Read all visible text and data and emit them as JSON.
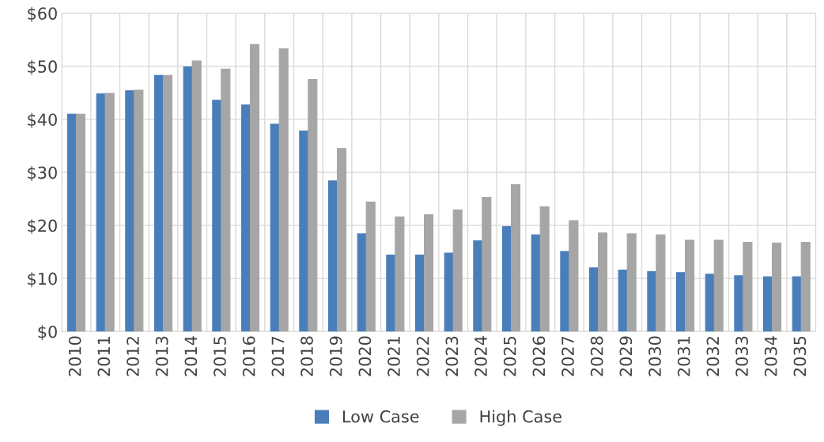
{
  "chart_data": {
    "type": "bar",
    "categories": [
      "2010",
      "2011",
      "2012",
      "2013",
      "2014",
      "2015",
      "2016",
      "2017",
      "2018",
      "2019",
      "2020",
      "2021",
      "2022",
      "2023",
      "2024",
      "2025",
      "2026",
      "2027",
      "2028",
      "2029",
      "2030",
      "2031",
      "2032",
      "2033",
      "2034",
      "2035"
    ],
    "series": [
      {
        "name": "Low Case",
        "color": "#4a7ebb",
        "values": [
          41.0,
          44.8,
          45.4,
          48.3,
          49.9,
          43.6,
          42.7,
          39.1,
          37.8,
          28.4,
          18.4,
          14.4,
          14.4,
          14.8,
          17.1,
          19.8,
          18.2,
          15.1,
          12.0,
          11.6,
          11.3,
          11.1,
          10.8,
          10.5,
          10.3,
          10.3
        ]
      },
      {
        "name": "High Case",
        "color": "#a6a6a6",
        "values": [
          41.0,
          44.9,
          45.5,
          48.3,
          51.0,
          49.5,
          54.1,
          53.3,
          47.5,
          34.5,
          24.4,
          21.6,
          22.0,
          22.9,
          25.3,
          27.7,
          23.5,
          20.9,
          18.6,
          18.4,
          18.2,
          17.2,
          17.2,
          16.8,
          16.7,
          16.8
        ]
      }
    ],
    "ylim": [
      0,
      60
    ],
    "yticks": [
      {
        "value": 0,
        "label": "$0"
      },
      {
        "value": 10,
        "label": "$10"
      },
      {
        "value": 20,
        "label": "$20"
      },
      {
        "value": 30,
        "label": "$30"
      },
      {
        "value": 40,
        "label": "$40"
      },
      {
        "value": 50,
        "label": "$50"
      },
      {
        "value": 60,
        "label": "$60"
      }
    ],
    "grid": true,
    "legend": "bottom"
  }
}
